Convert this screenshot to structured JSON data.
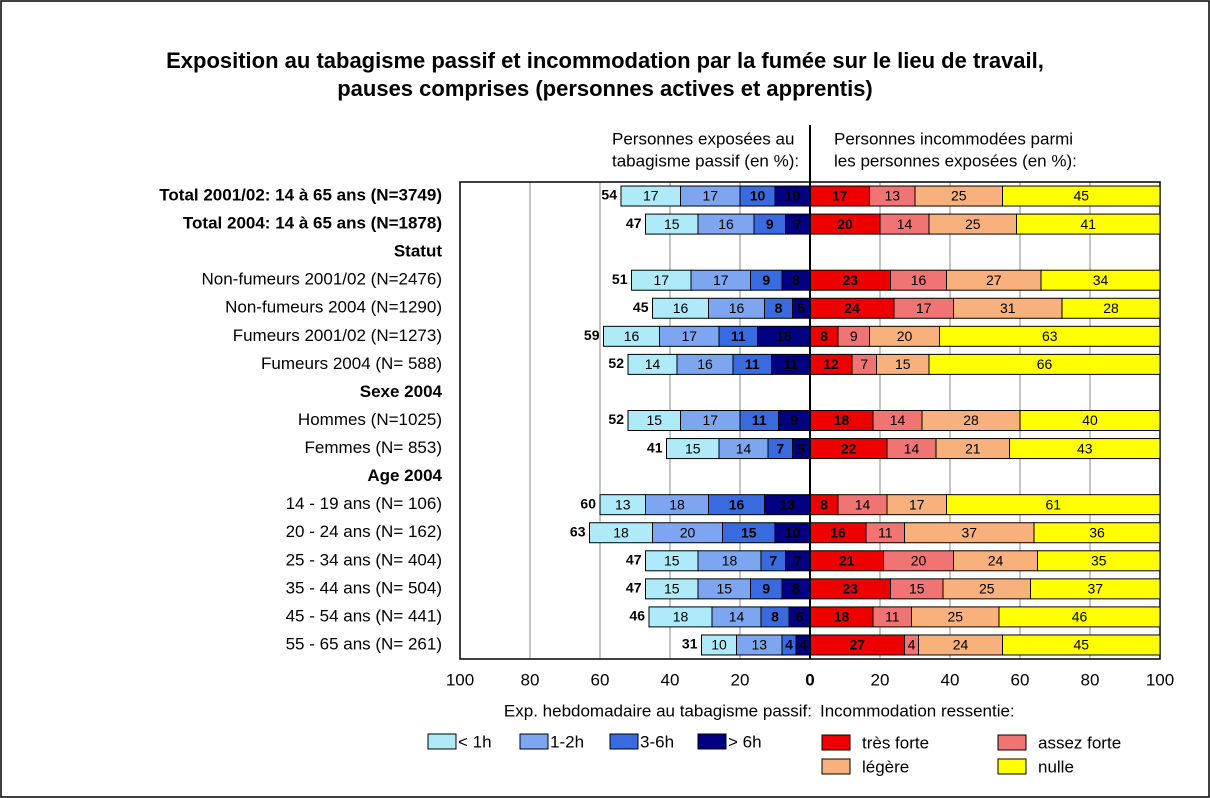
{
  "chart_data": {
    "type": "diverging-bar",
    "title": [
      "Exposition au tabagisme passif et incommodation par la fumée sur le lieu de travail,",
      "pauses comprises (personnes actives et apprentis)"
    ],
    "categories": [
      "Total 2001/02: 14 à 65 ans (N=3749)",
      "Total 2004: 14 à 65 ans (N=1878)",
      "Statut",
      "Non-fumeurs 2001/02 (N=2476)",
      "Non-fumeurs 2004 (N=1290)",
      "Fumeurs 2001/02 (N=1273)",
      "Fumeurs 2004 (N= 588)",
      "Sexe 2004",
      "Hommes (N=1025)",
      "Femmes (N= 853)",
      "Age 2004",
      "14 - 19 ans (N= 106)",
      "20 - 24 ans (N= 162)",
      "25 - 34 ans (N= 404)",
      "35 - 44 ans (N= 504)",
      "45 - 54 ans (N= 441)",
      "55 - 65 ans (N= 261)"
    ],
    "category_colors": [
      "#1a1aff",
      "#000000",
      "#000000",
      "#1a1aff",
      "#000000",
      "#1a1aff",
      "#000000",
      "#000000",
      "#000000",
      "#000000",
      "#000000",
      "#000000",
      "#000000",
      "#000000",
      "#000000",
      "#000000",
      "#000000"
    ],
    "category_bold": [
      true,
      true,
      true,
      false,
      false,
      false,
      false,
      true,
      false,
      false,
      true,
      false,
      false,
      false,
      false,
      false,
      false
    ],
    "left": {
      "heading": [
        "Personnes exposées au",
        "tabagisme passif (en %):"
      ],
      "legend_title": "Exp. hebdomadaire au tabagisme passif:",
      "xlim": [
        0,
        100
      ],
      "xticks": [
        20,
        40,
        60,
        80,
        100
      ],
      "totals": [
        54,
        47,
        null,
        51,
        45,
        59,
        52,
        null,
        52,
        41,
        null,
        60,
        63,
        47,
        47,
        46,
        31
      ],
      "series": [
        {
          "name": "< 1h",
          "color": "#aeeaf8",
          "values": [
            17,
            15,
            null,
            17,
            16,
            16,
            14,
            null,
            15,
            15,
            null,
            13,
            18,
            15,
            15,
            18,
            10
          ]
        },
        {
          "name": "1-2h",
          "color": "#7ea6f0",
          "values": [
            17,
            16,
            null,
            17,
            16,
            17,
            16,
            null,
            17,
            14,
            null,
            18,
            20,
            18,
            15,
            14,
            13
          ]
        },
        {
          "name": "3-6h",
          "color": "#3a6ae0",
          "values": [
            10,
            9,
            null,
            9,
            8,
            11,
            11,
            null,
            11,
            7,
            null,
            16,
            15,
            7,
            9,
            8,
            4
          ]
        },
        {
          "name": "> 6h",
          "color": "#000080",
          "values": [
            10,
            7,
            null,
            8,
            5,
            15,
            11,
            null,
            9,
            5,
            null,
            13,
            10,
            7,
            8,
            6,
            4
          ]
        }
      ]
    },
    "right": {
      "heading": [
        "Personnes incommodées parmi",
        "les personnes exposées (en %):"
      ],
      "legend_title": "Incommodation ressentie:",
      "xlim": [
        0,
        100
      ],
      "xticks": [
        0,
        20,
        40,
        60,
        80,
        100
      ],
      "series": [
        {
          "name": "très forte",
          "color": "#ee0000",
          "values": [
            17,
            20,
            null,
            23,
            24,
            8,
            12,
            null,
            18,
            22,
            null,
            8,
            16,
            21,
            23,
            18,
            27
          ]
        },
        {
          "name": "assez forte",
          "color": "#f07474",
          "values": [
            13,
            14,
            null,
            16,
            17,
            9,
            7,
            null,
            14,
            14,
            null,
            14,
            11,
            20,
            15,
            11,
            4
          ]
        },
        {
          "name": "légère",
          "color": "#f8b07c",
          "values": [
            25,
            25,
            null,
            27,
            31,
            20,
            15,
            null,
            28,
            21,
            null,
            17,
            37,
            24,
            25,
            25,
            24
          ]
        },
        {
          "name": "nulle",
          "color": "#ffff00",
          "values": [
            45,
            41,
            null,
            34,
            28,
            63,
            66,
            null,
            40,
            43,
            null,
            61,
            36,
            35,
            37,
            46,
            45
          ]
        }
      ]
    }
  }
}
